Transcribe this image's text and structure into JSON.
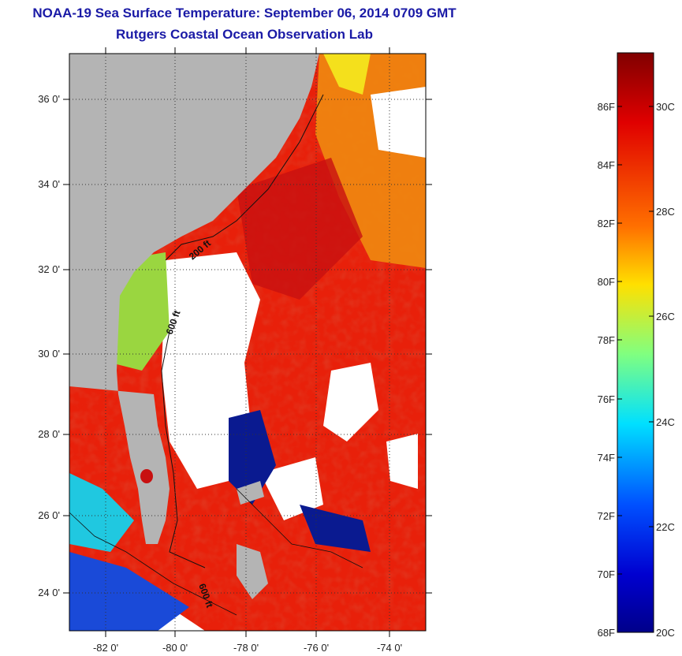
{
  "header": {
    "title": "NOAA-19 Sea Surface Temperature:  September 06, 2014 0709 GMT",
    "subtitle": "Rutgers Coastal Ocean Observation Lab"
  },
  "map": {
    "lon_labels": [
      "-82 0'",
      "-80 0'",
      "-78 0'",
      "-76 0'",
      "-74 0'"
    ],
    "lat_labels": [
      "36 0'",
      "34 0'",
      "32 0'",
      "30 0'",
      "28 0'",
      "26 0'",
      "24 0'"
    ],
    "contour_labels": [
      "200 ft",
      "600 ft",
      "600 ft"
    ],
    "colors": {
      "land": "#b4b4b4",
      "cloud": "#ffffff",
      "warm": "#e8200a",
      "hot": "#c81010",
      "orange": "#f08a10",
      "yellow": "#f4e01c",
      "green": "#9ad640",
      "cyan": "#20c8e0",
      "blue": "#1a4ad8",
      "navy": "#0a1a90"
    }
  },
  "colorbar": {
    "fahrenheit_labels": [
      "86F",
      "84F",
      "82F",
      "80F",
      "78F",
      "76F",
      "74F",
      "72F",
      "70F",
      "68F"
    ],
    "celsius_labels": [
      "30C",
      "28C",
      "26C",
      "24C",
      "22C",
      "20C"
    ],
    "colormap": "jet"
  }
}
